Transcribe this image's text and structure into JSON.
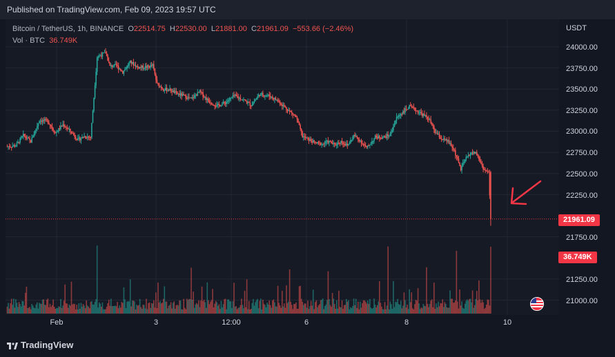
{
  "header": {
    "published": "Published on TradingView.com, Feb 09, 2023 19:57 UTC"
  },
  "legend": {
    "symbol": "Bitcoin / TetherUS, 1h, BINANCE",
    "open_label": "O",
    "open": "22514.75",
    "high_label": "H",
    "high": "22530.00",
    "low_label": "L",
    "low": "21881.00",
    "close_label": "C",
    "close": "21961.09",
    "change": "−553.66 (−2.46%)",
    "vol_label": "Vol · BTC",
    "vol": "36.749K"
  },
  "price_axis": {
    "currency": "USDT",
    "ticks": [
      "24000.00",
      "23750.00",
      "23500.00",
      "23250.00",
      "23000.00",
      "22750.00",
      "22500.00",
      "22250.00",
      "21750.00",
      "21250.00",
      "21000.00"
    ],
    "current_price": "21961.09",
    "current_volume": "36.749K"
  },
  "time_axis": {
    "labels": [
      "Feb",
      "3",
      "12:00",
      "6",
      "8",
      "10"
    ]
  },
  "footer": {
    "brand": "TradingView"
  },
  "colors": {
    "up": "#26a69a",
    "down": "#ef5350",
    "accent": "#f23645",
    "background": "#131722"
  },
  "icons": {
    "flag": "us-flag-icon",
    "logo": "tradingview-logo-icon",
    "annotation": "arrow-annotation"
  },
  "chart_data": {
    "type": "candlestick",
    "symbol": "Bitcoin / TetherUS",
    "interval": "1h",
    "ylim": [
      20900,
      24250
    ],
    "last": {
      "open": 22514.75,
      "high": 22530.0,
      "low": 21881.0,
      "close": 21961.09,
      "volume": "36.749K"
    },
    "close_path": [
      [
        0,
        22820
      ],
      [
        8,
        22830
      ],
      [
        15,
        22950
      ],
      [
        22,
        22880
      ],
      [
        30,
        23130
      ],
      [
        38,
        23120
      ],
      [
        45,
        22980
      ],
      [
        52,
        23080
      ],
      [
        60,
        22990
      ],
      [
        66,
        22900
      ],
      [
        72,
        22940
      ],
      [
        78,
        22930
      ],
      [
        84,
        23880
      ],
      [
        92,
        23930
      ],
      [
        96,
        23770
      ],
      [
        102,
        23780
      ],
      [
        108,
        23700
      ],
      [
        115,
        23820
      ],
      [
        122,
        23760
      ],
      [
        130,
        23760
      ],
      [
        136,
        23780
      ],
      [
        140,
        23560
      ],
      [
        146,
        23500
      ],
      [
        152,
        23490
      ],
      [
        158,
        23450
      ],
      [
        165,
        23420
      ],
      [
        172,
        23380
      ],
      [
        180,
        23470
      ],
      [
        188,
        23360
      ],
      [
        196,
        23300
      ],
      [
        204,
        23340
      ],
      [
        212,
        23420
      ],
      [
        220,
        23380
      ],
      [
        228,
        23310
      ],
      [
        236,
        23440
      ],
      [
        245,
        23420
      ],
      [
        252,
        23370
      ],
      [
        260,
        23280
      ],
      [
        270,
        23170
      ],
      [
        276,
        22940
      ],
      [
        282,
        22900
      ],
      [
        288,
        22860
      ],
      [
        295,
        22850
      ],
      [
        300,
        22880
      ],
      [
        306,
        22840
      ],
      [
        312,
        22880
      ],
      [
        318,
        22830
      ],
      [
        324,
        22950
      ],
      [
        330,
        22890
      ],
      [
        336,
        22800
      ],
      [
        344,
        22930
      ],
      [
        352,
        22930
      ],
      [
        358,
        22960
      ],
      [
        364,
        23160
      ],
      [
        370,
        23230
      ],
      [
        376,
        23290
      ],
      [
        382,
        23250
      ],
      [
        388,
        23200
      ],
      [
        394,
        23150
      ],
      [
        400,
        22990
      ],
      [
        406,
        22910
      ],
      [
        412,
        22880
      ],
      [
        418,
        22770
      ],
      [
        424,
        22550
      ],
      [
        428,
        22660
      ],
      [
        432,
        22730
      ],
      [
        438,
        22750
      ],
      [
        442,
        22640
      ],
      [
        446,
        22540
      ],
      [
        450,
        22510
      ],
      [
        452,
        21961
      ]
    ],
    "volume_spikes": [
      [
        84,
        "high"
      ],
      [
        172,
        "med"
      ],
      [
        264,
        "med"
      ],
      [
        300,
        "med"
      ],
      [
        356,
        "high"
      ],
      [
        392,
        "med"
      ],
      [
        420,
        "high"
      ],
      [
        452,
        "high"
      ]
    ]
  }
}
